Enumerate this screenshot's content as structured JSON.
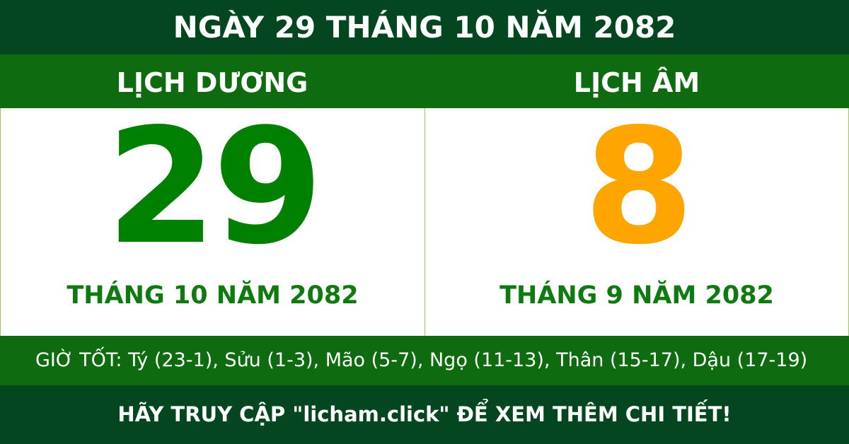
{
  "title": "NGÀY 29 THÁNG 10 NĂM 2082",
  "solar": {
    "label": "LỊCH DƯƠNG",
    "day": "29",
    "month_year": "THÁNG 10 NĂM 2082",
    "color": "#008000"
  },
  "lunar": {
    "label": "LỊCH ÂM",
    "day": "8",
    "month_year": "THÁNG 9 NĂM 2082",
    "color": "#ffa500"
  },
  "good_hours": "GIỜ TỐT: Tý (23-1), Sửu (1-3), Mão (5-7), Ngọ (11-13), Thân (15-17), Dậu (17-19)",
  "footer": "HÃY TRUY CẬP \"licham.click\" ĐỂ XEM THÊM CHI TIẾT!"
}
